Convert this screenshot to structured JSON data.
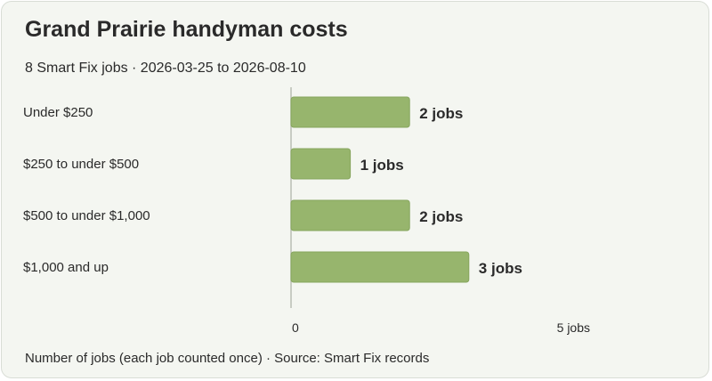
{
  "header": {
    "title": "Grand Prairie handyman costs",
    "subtitle": "8 Smart Fix jobs · 2026-03-25 to 2026-08-10"
  },
  "footer": {
    "note": "Number of jobs (each job counted once) · Source: Smart Fix records"
  },
  "colors": {
    "bar": "#97b56d",
    "bar_stroke": "#86a55d",
    "axis": "#b9beb4",
    "background": "#f4f6f1"
  },
  "chart_data": {
    "type": "bar",
    "orientation": "horizontal",
    "title": "Grand Prairie handyman costs",
    "subtitle": "8 Smart Fix jobs · 2026-03-25 to 2026-08-10",
    "categories": [
      "Under $250",
      "$250 to under $500",
      "$500 to under $1,000",
      "$1,000 and up"
    ],
    "values": [
      2,
      1,
      2,
      3
    ],
    "value_labels": [
      "2 jobs",
      "1 jobs",
      "2 jobs",
      "3 jobs"
    ],
    "xlim": [
      0,
      5
    ],
    "x_ticks": [
      0,
      5
    ],
    "x_tick_labels": [
      "0",
      "5 jobs"
    ],
    "grid": false,
    "legend": "none"
  }
}
